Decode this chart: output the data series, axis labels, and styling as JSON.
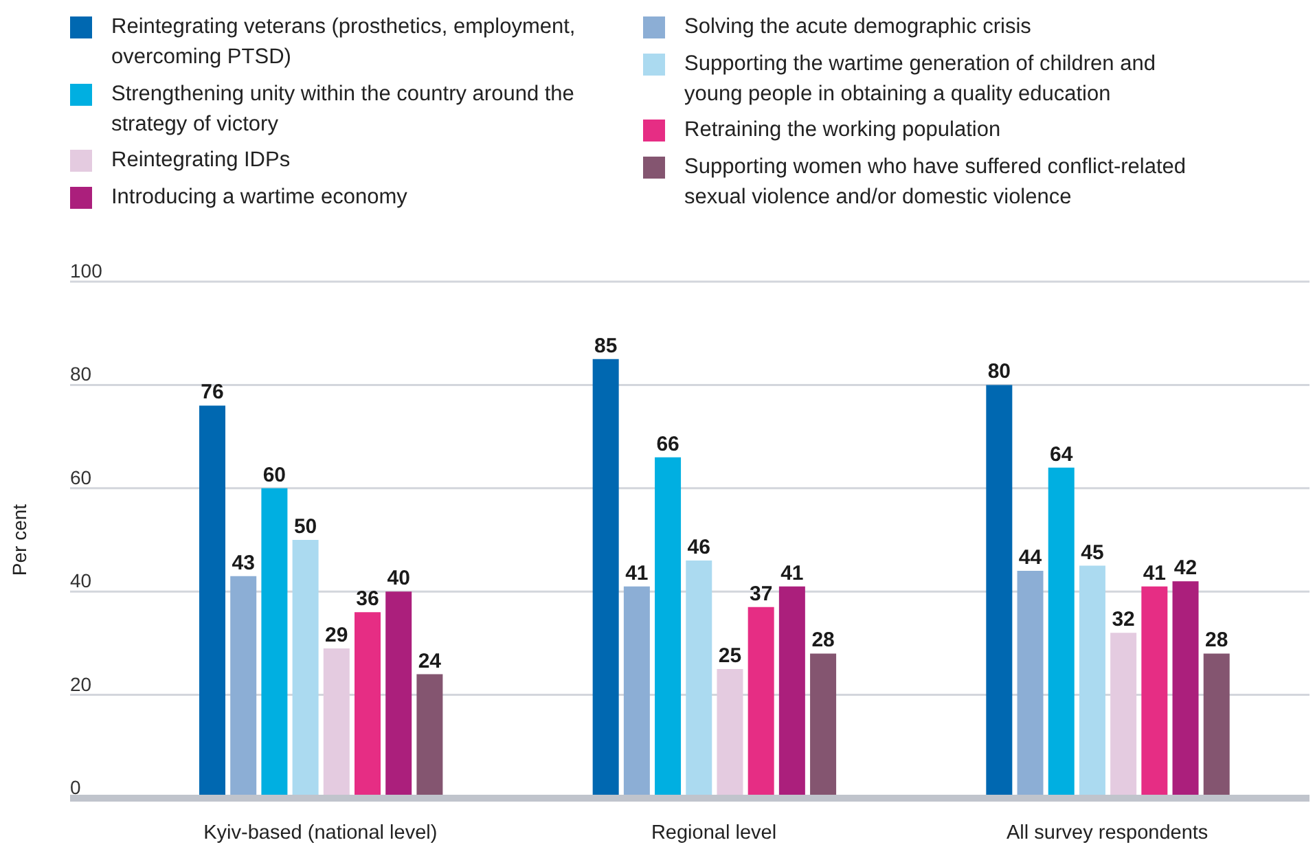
{
  "chart_data": {
    "type": "bar",
    "ylabel": "Per cent",
    "categories": [
      "Kyiv-based (national level)",
      "Regional level",
      "All survey respondents"
    ],
    "series": [
      {
        "name": "Reintegrating veterans (prosthetics, employment, overcoming PTSD)",
        "color": "#0068b1",
        "values": [
          76,
          85,
          80
        ]
      },
      {
        "name": "Solving the acute demographic crisis",
        "color": "#8caed5",
        "values": [
          43,
          41,
          44
        ]
      },
      {
        "name": "Strengthening unity within the country around the strategy of victory",
        "color": "#00afe1",
        "values": [
          60,
          66,
          64
        ]
      },
      {
        "name": "Supporting the wartime generation of children and young people in obtaining a quality education",
        "color": "#abdaf0",
        "values": [
          50,
          46,
          45
        ]
      },
      {
        "name": "Reintegrating IDPs",
        "color": "#e4cbe0",
        "values": [
          29,
          25,
          32
        ]
      },
      {
        "name": "Retraining the working population",
        "color": "#e62d84",
        "values": [
          36,
          37,
          41
        ]
      },
      {
        "name": "Introducing a wartime economy",
        "color": "#ab1f7c",
        "values": [
          40,
          41,
          42
        ]
      },
      {
        "name": "Supporting women who have suffered conflict-related sexual violence and/or domestic violence",
        "color": "#845570",
        "values": [
          24,
          28,
          28
        ]
      }
    ],
    "ylim": [
      0,
      100
    ],
    "yticks": [
      0,
      20,
      40,
      60,
      80,
      100
    ],
    "grid": "y",
    "legend": "top",
    "data_labels": true
  }
}
